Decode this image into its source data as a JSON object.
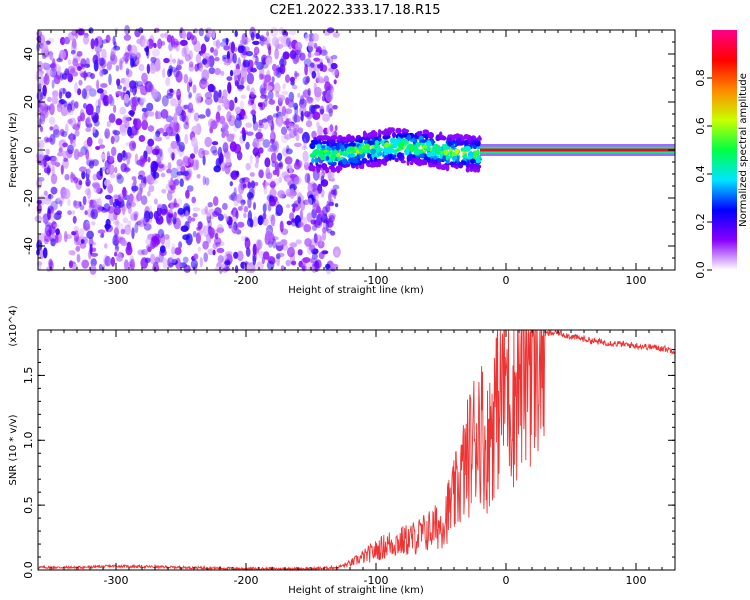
{
  "title": "C2E1.2022.333.17.18.R15",
  "chart_data": [
    {
      "type": "heatmap",
      "xlabel": "Height of straight line (km)",
      "ylabel": "Frequency (Hz)",
      "xlim": [
        -360,
        130
      ],
      "ylim": [
        -50,
        50
      ],
      "x_ticks": [
        -300,
        -200,
        -100,
        0,
        100
      ],
      "y_ticks": [
        -40,
        -20,
        0,
        20,
        40
      ],
      "colorbar": {
        "label": "Normalized spectral amplitude",
        "range": [
          0.0,
          1.0
        ],
        "ticks": [
          0.0,
          0.2,
          0.4,
          0.6,
          0.8
        ],
        "tick_labels": [
          "0.0",
          "0.2",
          "0.4",
          "0.6",
          "0.8"
        ],
        "colormap": [
          "#ffffff",
          "#8800ff",
          "#0000ff",
          "#00e5ff",
          "#00ff44",
          "#c8ff00",
          "#ff8800",
          "#ff0000",
          "#ff0088"
        ]
      },
      "regions": [
        {
          "description": "broadband noise",
          "x_range": [
            -360,
            -130
          ],
          "freq_range": [
            -50,
            50
          ],
          "amplitude": 0.15
        },
        {
          "description": "signal band",
          "x_range": [
            -150,
            -20
          ],
          "freq_range": [
            -6,
            8
          ],
          "amplitude": 0.4
        },
        {
          "description": "strong narrow signal",
          "x_range": [
            -20,
            130
          ],
          "freq_range": [
            -1,
            1
          ],
          "amplitude": 0.9
        }
      ],
      "grid": false
    },
    {
      "type": "line",
      "xlabel": "Height of straight line (km)",
      "ylabel": "SNR (10 * v/v)",
      "y_multiplier": "(x10^4)",
      "xlim": [
        -360,
        130
      ],
      "ylim": [
        0,
        1.85
      ],
      "x_ticks": [
        -300,
        -200,
        -100,
        0,
        100
      ],
      "y_ticks": [
        0.0,
        0.5,
        1.0,
        1.5
      ],
      "y_tick_labels": [
        "0.0",
        "0.5",
        "1.0",
        "1.5"
      ],
      "color": "#ee3333",
      "series": [
        {
          "x": [
            -360,
            -330,
            -300,
            -250,
            -200,
            -150,
            -130,
            -120,
            -110,
            -100,
            -90,
            -80,
            -70,
            -60,
            -50,
            -40,
            -35,
            -30,
            -25,
            -20,
            -15,
            -10,
            -5,
            0,
            5,
            10,
            15,
            20,
            30,
            40,
            50,
            60,
            70,
            80,
            90,
            100,
            110,
            120,
            130
          ],
          "y": [
            0.02,
            0.02,
            0.03,
            0.02,
            0.01,
            0.01,
            0.02,
            0.05,
            0.1,
            0.15,
            0.2,
            0.22,
            0.25,
            0.3,
            0.35,
            0.55,
            0.7,
            0.85,
            1.0,
            1.15,
            0.9,
            1.2,
            1.35,
            1.5,
            1.3,
            1.55,
            1.65,
            1.75,
            1.82,
            1.83,
            1.8,
            1.78,
            1.76,
            1.75,
            1.74,
            1.73,
            1.72,
            1.71,
            1.69
          ]
        }
      ],
      "grid": false
    }
  ]
}
